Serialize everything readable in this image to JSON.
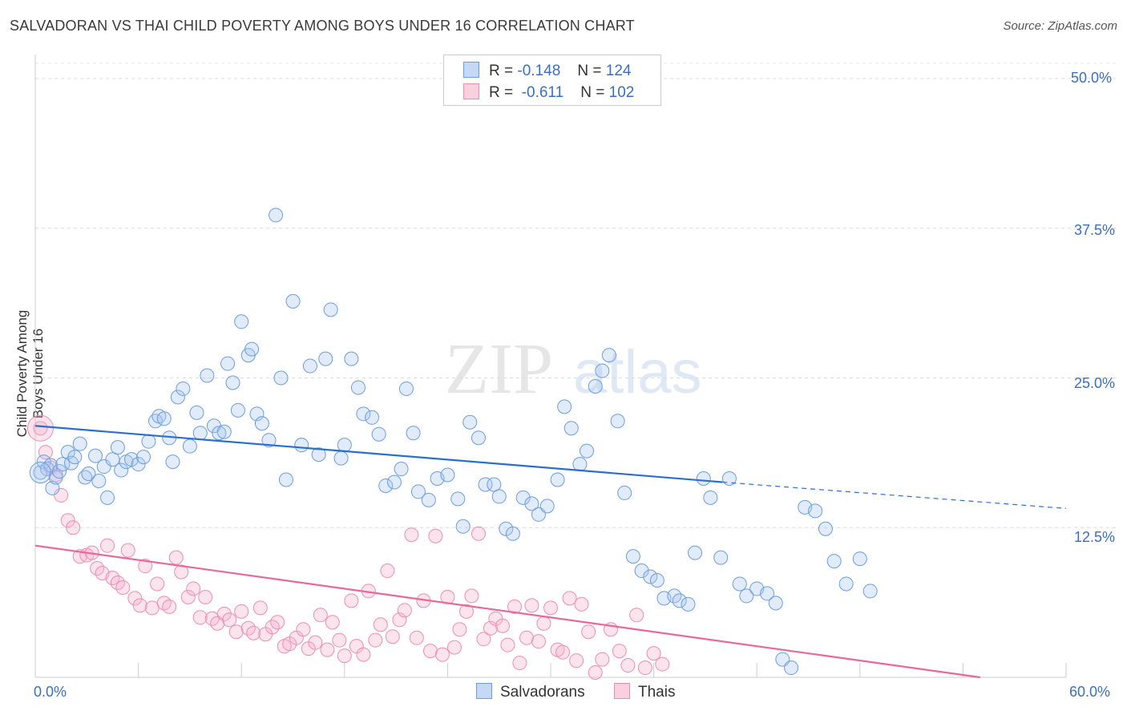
{
  "title": "SALVADORAN VS THAI CHILD POVERTY AMONG BOYS UNDER 16 CORRELATION CHART",
  "source": "Source: ZipAtlas.com",
  "watermark": {
    "zip": "ZIP",
    "atlas": "atlas"
  },
  "colors": {
    "blue": "#6a9ee0",
    "blue_line": "#2a6fcf",
    "pink": "#f08cb0",
    "pink_line": "#e8689a",
    "tick": "#3a6fc4"
  },
  "legend": {
    "rows": [
      {
        "r_label": "R =",
        "r_value": "-0.148",
        "n_label": "N =",
        "n_value": "124"
      },
      {
        "r_label": "R =",
        "r_value": "-0.611",
        "n_label": "N =",
        "n_value": "102"
      }
    ]
  },
  "bottom_legend": {
    "series1": "Salvadorans",
    "series2": "Thais"
  },
  "chart_data": {
    "type": "scatter",
    "title": "SALVADORAN VS THAI CHILD POVERTY AMONG BOYS UNDER 16 CORRELATION CHART",
    "xlabel": "",
    "ylabel": "Child Poverty Among Boys Under 16",
    "xlim": [
      0,
      60
    ],
    "ylim": [
      0,
      50
    ],
    "x_tick_labels": [
      "0.0%",
      "60.0%"
    ],
    "y_tick_labels": [
      "12.5%",
      "25.0%",
      "37.5%",
      "50.0%"
    ],
    "y_ticks": [
      12.5,
      25.0,
      37.5,
      50.0
    ],
    "grid": true,
    "legend_position": "top-center",
    "series": [
      {
        "name": "Salvadorans",
        "color": "#6a9ee0",
        "r": -0.148,
        "n": 124,
        "trend": {
          "x0": 0,
          "y0": 21.0,
          "x1": 40,
          "y1": 16.3,
          "dash_to_x": 60,
          "dash_to_y": 14.1
        },
        "points": [
          [
            0.3,
            17.1
          ],
          [
            0.5,
            18.0
          ],
          [
            0.7,
            17.4
          ],
          [
            0.9,
            17.7
          ],
          [
            1.0,
            15.8
          ],
          [
            1.2,
            16.7
          ],
          [
            1.4,
            17.2
          ],
          [
            1.6,
            17.8
          ],
          [
            1.9,
            18.8
          ],
          [
            2.1,
            17.9
          ],
          [
            2.3,
            18.4
          ],
          [
            2.6,
            19.5
          ],
          [
            2.9,
            16.7
          ],
          [
            3.1,
            17.0
          ],
          [
            3.5,
            18.5
          ],
          [
            3.7,
            16.4
          ],
          [
            4.0,
            17.6
          ],
          [
            4.2,
            15.0
          ],
          [
            4.5,
            18.2
          ],
          [
            4.8,
            19.2
          ],
          [
            5.0,
            17.3
          ],
          [
            5.3,
            18.0
          ],
          [
            5.6,
            18.2
          ],
          [
            6.0,
            17.8
          ],
          [
            6.3,
            18.4
          ],
          [
            6.6,
            19.7
          ],
          [
            7.0,
            21.4
          ],
          [
            7.2,
            21.8
          ],
          [
            7.5,
            21.6
          ],
          [
            7.8,
            20.0
          ],
          [
            8.0,
            18.0
          ],
          [
            8.3,
            23.4
          ],
          [
            8.6,
            24.1
          ],
          [
            9.0,
            19.3
          ],
          [
            9.4,
            22.1
          ],
          [
            9.6,
            20.4
          ],
          [
            10.0,
            25.2
          ],
          [
            10.4,
            21.0
          ],
          [
            10.7,
            20.4
          ],
          [
            11.0,
            20.5
          ],
          [
            11.2,
            26.2
          ],
          [
            11.5,
            24.6
          ],
          [
            11.8,
            22.3
          ],
          [
            12.0,
            29.7
          ],
          [
            12.4,
            26.9
          ],
          [
            12.6,
            27.4
          ],
          [
            12.9,
            22.0
          ],
          [
            13.2,
            21.2
          ],
          [
            13.6,
            19.8
          ],
          [
            14.0,
            38.6
          ],
          [
            14.3,
            25.0
          ],
          [
            14.6,
            16.5
          ],
          [
            15.0,
            31.4
          ],
          [
            15.5,
            19.4
          ],
          [
            16.0,
            26.0
          ],
          [
            16.5,
            18.6
          ],
          [
            16.9,
            26.6
          ],
          [
            17.2,
            30.7
          ],
          [
            17.8,
            18.3
          ],
          [
            18.0,
            19.4
          ],
          [
            18.4,
            26.6
          ],
          [
            18.8,
            24.2
          ],
          [
            19.1,
            22.0
          ],
          [
            19.6,
            21.7
          ],
          [
            20.0,
            20.3
          ],
          [
            20.4,
            16.0
          ],
          [
            20.9,
            16.3
          ],
          [
            21.3,
            17.4
          ],
          [
            21.6,
            24.1
          ],
          [
            22.0,
            20.4
          ],
          [
            22.3,
            15.5
          ],
          [
            22.9,
            14.8
          ],
          [
            23.4,
            16.6
          ],
          [
            24.0,
            16.9
          ],
          [
            24.6,
            14.9
          ],
          [
            24.9,
            12.6
          ],
          [
            25.3,
            21.3
          ],
          [
            25.8,
            20.0
          ],
          [
            26.2,
            16.1
          ],
          [
            26.7,
            16.1
          ],
          [
            27.0,
            15.1
          ],
          [
            27.4,
            12.4
          ],
          [
            27.8,
            12.0
          ],
          [
            28.4,
            15.0
          ],
          [
            28.9,
            14.5
          ],
          [
            29.3,
            13.6
          ],
          [
            29.8,
            14.3
          ],
          [
            30.4,
            16.5
          ],
          [
            30.8,
            22.6
          ],
          [
            31.2,
            20.8
          ],
          [
            31.7,
            17.8
          ],
          [
            32.1,
            18.9
          ],
          [
            32.6,
            24.3
          ],
          [
            33.0,
            25.6
          ],
          [
            33.4,
            26.9
          ],
          [
            33.9,
            21.4
          ],
          [
            34.3,
            15.4
          ],
          [
            34.8,
            10.1
          ],
          [
            35.3,
            8.9
          ],
          [
            35.8,
            8.4
          ],
          [
            36.2,
            8.1
          ],
          [
            36.6,
            6.6
          ],
          [
            37.2,
            6.8
          ],
          [
            37.5,
            6.4
          ],
          [
            38.0,
            6.1
          ],
          [
            38.4,
            10.4
          ],
          [
            38.9,
            16.6
          ],
          [
            39.3,
            15.0
          ],
          [
            39.9,
            10.0
          ],
          [
            40.4,
            16.6
          ],
          [
            41.0,
            7.8
          ],
          [
            41.4,
            6.8
          ],
          [
            42.0,
            7.4
          ],
          [
            42.6,
            7.0
          ],
          [
            43.1,
            6.2
          ],
          [
            43.5,
            1.5
          ],
          [
            44.0,
            0.8
          ],
          [
            44.8,
            14.2
          ],
          [
            45.4,
            13.9
          ],
          [
            46.0,
            12.4
          ],
          [
            46.5,
            9.7
          ],
          [
            47.2,
            7.8
          ],
          [
            48.0,
            9.9
          ],
          [
            48.6,
            7.2
          ]
        ]
      },
      {
        "name": "Thais",
        "color": "#f08cb0",
        "r": -0.611,
        "n": 102,
        "trend": {
          "x0": 0,
          "y0": 11.0,
          "x1": 55,
          "y1": 0
        },
        "points": [
          [
            0.3,
            20.8
          ],
          [
            0.6,
            18.8
          ],
          [
            0.9,
            17.5
          ],
          [
            1.2,
            16.9
          ],
          [
            1.5,
            15.2
          ],
          [
            1.9,
            13.1
          ],
          [
            2.2,
            12.5
          ],
          [
            2.6,
            10.1
          ],
          [
            3.0,
            10.2
          ],
          [
            3.3,
            10.4
          ],
          [
            3.6,
            9.1
          ],
          [
            3.9,
            8.7
          ],
          [
            4.2,
            11.0
          ],
          [
            4.5,
            8.3
          ],
          [
            4.8,
            7.9
          ],
          [
            5.1,
            7.5
          ],
          [
            5.4,
            10.6
          ],
          [
            5.8,
            6.6
          ],
          [
            6.1,
            6.0
          ],
          [
            6.4,
            9.3
          ],
          [
            6.8,
            5.8
          ],
          [
            7.1,
            7.8
          ],
          [
            7.5,
            6.2
          ],
          [
            7.8,
            5.9
          ],
          [
            8.2,
            10.0
          ],
          [
            8.5,
            8.8
          ],
          [
            8.9,
            6.7
          ],
          [
            9.2,
            7.4
          ],
          [
            9.6,
            5.0
          ],
          [
            9.9,
            6.7
          ],
          [
            10.3,
            4.9
          ],
          [
            10.6,
            4.5
          ],
          [
            11.0,
            5.3
          ],
          [
            11.3,
            4.8
          ],
          [
            11.7,
            3.8
          ],
          [
            12.0,
            5.5
          ],
          [
            12.4,
            4.1
          ],
          [
            12.7,
            3.7
          ],
          [
            13.1,
            5.8
          ],
          [
            13.4,
            3.6
          ],
          [
            13.8,
            4.2
          ],
          [
            14.1,
            4.6
          ],
          [
            14.5,
            2.6
          ],
          [
            14.8,
            2.8
          ],
          [
            15.2,
            3.3
          ],
          [
            15.6,
            4.0
          ],
          [
            15.9,
            2.4
          ],
          [
            16.3,
            2.9
          ],
          [
            16.6,
            5.2
          ],
          [
            17.0,
            2.3
          ],
          [
            17.3,
            4.6
          ],
          [
            17.7,
            3.1
          ],
          [
            18.0,
            1.8
          ],
          [
            18.4,
            6.4
          ],
          [
            18.7,
            2.6
          ],
          [
            19.1,
            1.9
          ],
          [
            19.4,
            7.2
          ],
          [
            19.8,
            3.1
          ],
          [
            20.1,
            4.4
          ],
          [
            20.5,
            8.9
          ],
          [
            20.8,
            3.4
          ],
          [
            21.2,
            4.8
          ],
          [
            21.5,
            5.6
          ],
          [
            21.9,
            11.9
          ],
          [
            22.2,
            3.3
          ],
          [
            22.6,
            6.4
          ],
          [
            23.0,
            2.2
          ],
          [
            23.3,
            11.8
          ],
          [
            23.7,
            1.9
          ],
          [
            24.0,
            6.7
          ],
          [
            24.4,
            2.5
          ],
          [
            24.7,
            4.0
          ],
          [
            25.1,
            5.5
          ],
          [
            25.4,
            6.8
          ],
          [
            25.8,
            12.0
          ],
          [
            26.1,
            3.2
          ],
          [
            26.5,
            4.1
          ],
          [
            26.8,
            4.9
          ],
          [
            27.2,
            4.3
          ],
          [
            27.5,
            2.7
          ],
          [
            27.9,
            5.9
          ],
          [
            28.2,
            1.2
          ],
          [
            28.6,
            3.3
          ],
          [
            28.9,
            6.0
          ],
          [
            29.3,
            3.0
          ],
          [
            29.6,
            4.5
          ],
          [
            30.0,
            5.8
          ],
          [
            30.4,
            2.3
          ],
          [
            30.7,
            2.1
          ],
          [
            31.1,
            6.6
          ],
          [
            31.5,
            1.4
          ],
          [
            31.8,
            6.1
          ],
          [
            32.2,
            3.8
          ],
          [
            32.6,
            0.4
          ],
          [
            33.0,
            1.5
          ],
          [
            33.5,
            4.0
          ],
          [
            34.0,
            2.2
          ],
          [
            34.5,
            1.0
          ],
          [
            35.0,
            5.2
          ],
          [
            35.5,
            0.8
          ],
          [
            36.0,
            2.0
          ],
          [
            36.5,
            1.1
          ]
        ]
      }
    ]
  }
}
